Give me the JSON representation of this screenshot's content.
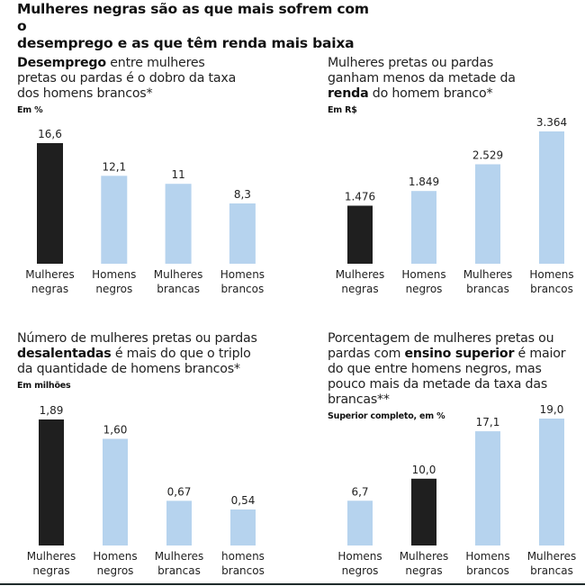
{
  "title": {
    "line1": "Mulheres negras são as que mais sofrem com o",
    "line2": "desemprego e as que têm renda mais baixa"
  },
  "colors": {
    "highlight": "#1f1f1f",
    "other": "#b6d3ee"
  },
  "chart_data": [
    {
      "type": "bar",
      "headline": {
        "segments": [
          {
            "text": "Desemprego",
            "bold": true
          },
          {
            "text": " entre mulheres pretas ou pardas é o dobro da taxa dos homens brancos*",
            "bold": false
          }
        ]
      },
      "title": "Desemprego entre mulheres pretas ou pardas é o dobro da taxa dos homens brancos*",
      "unit": "Em %",
      "categories": [
        [
          "Mulheres",
          "negras"
        ],
        [
          "Homens",
          "negros"
        ],
        [
          "Mulheres",
          "brancas"
        ],
        [
          "Homens",
          "brancos"
        ]
      ],
      "values": [
        16.6,
        12.1,
        11,
        8.3
      ],
      "value_labels": [
        "16,6",
        "12,1",
        "11",
        "8,3"
      ],
      "highlight": [
        true,
        false,
        false,
        false
      ],
      "ylim": [
        0,
        16.6
      ],
      "grid": false,
      "xlabel": "",
      "ylabel": ""
    },
    {
      "type": "bar",
      "headline": {
        "segments": [
          {
            "text": "Mulheres pretas ou pardas ganham menos da metade da ",
            "bold": false
          },
          {
            "text": "renda",
            "bold": true
          },
          {
            "text": " do homem branco*",
            "bold": false
          }
        ]
      },
      "title": "Mulheres pretas ou pardas ganham menos da metade da renda do homem branco*",
      "unit": "Em R$",
      "categories": [
        [
          "Mulheres",
          "negras"
        ],
        [
          "Homens",
          "negros"
        ],
        [
          "Mulheres",
          "brancas"
        ],
        [
          "Homens",
          "brancos"
        ]
      ],
      "values": [
        1476,
        1849,
        2529,
        3364
      ],
      "value_labels": [
        "1.476",
        "1.849",
        "2.529",
        "3.364"
      ],
      "highlight": [
        true,
        false,
        false,
        false
      ],
      "ylim": [
        0,
        3364
      ],
      "grid": false,
      "xlabel": "",
      "ylabel": ""
    },
    {
      "type": "bar",
      "headline": {
        "segments": [
          {
            "text": "Número de mulheres pretas ou pardas ",
            "bold": false
          },
          {
            "text": "desalentadas",
            "bold": true
          },
          {
            "text": " é mais do que o triplo da quantidade de homens brancos*",
            "bold": false
          }
        ]
      },
      "title": "Número de mulheres pretas ou pardas desalentadas é mais do que o triplo da quantidade de homens brancos*",
      "unit": "Em milhões",
      "categories": [
        [
          "Mulheres",
          "negras"
        ],
        [
          "Homens",
          "negros"
        ],
        [
          "Mulheres",
          "brancas"
        ],
        [
          "homens",
          "brancos"
        ]
      ],
      "values": [
        1.89,
        1.6,
        0.67,
        0.54
      ],
      "value_labels": [
        "1,89",
        "1,60",
        "0,67",
        "0,54"
      ],
      "highlight": [
        true,
        false,
        false,
        false
      ],
      "ylim": [
        0,
        1.89
      ],
      "grid": false,
      "xlabel": "",
      "ylabel": ""
    },
    {
      "type": "bar",
      "headline": {
        "segments": [
          {
            "text": "Porcentagem de mulheres pretas ou pardas com ",
            "bold": false
          },
          {
            "text": "ensino superior",
            "bold": true
          },
          {
            "text": " é maior do que entre homens negros, mas pouco mais da metade da taxa das brancas**",
            "bold": false
          }
        ]
      },
      "title": "Porcentagem de mulheres pretas ou pardas com ensino superior é maior do que entre homens negros, mas pouco mais da metade da taxa das brancas**",
      "unit": "Superior completo, em %",
      "categories": [
        [
          "Homens",
          "negros"
        ],
        [
          "Mulheres",
          "negras"
        ],
        [
          "Homens",
          "brancos"
        ],
        [
          "Mulheres",
          "brancas"
        ]
      ],
      "values": [
        6.7,
        10.0,
        17.1,
        19.0
      ],
      "value_labels": [
        "6,7",
        "10,0",
        "17,1",
        "19,0"
      ],
      "highlight": [
        false,
        true,
        false,
        false
      ],
      "ylim": [
        0,
        19.0
      ],
      "grid": false,
      "xlabel": "",
      "ylabel": ""
    }
  ]
}
